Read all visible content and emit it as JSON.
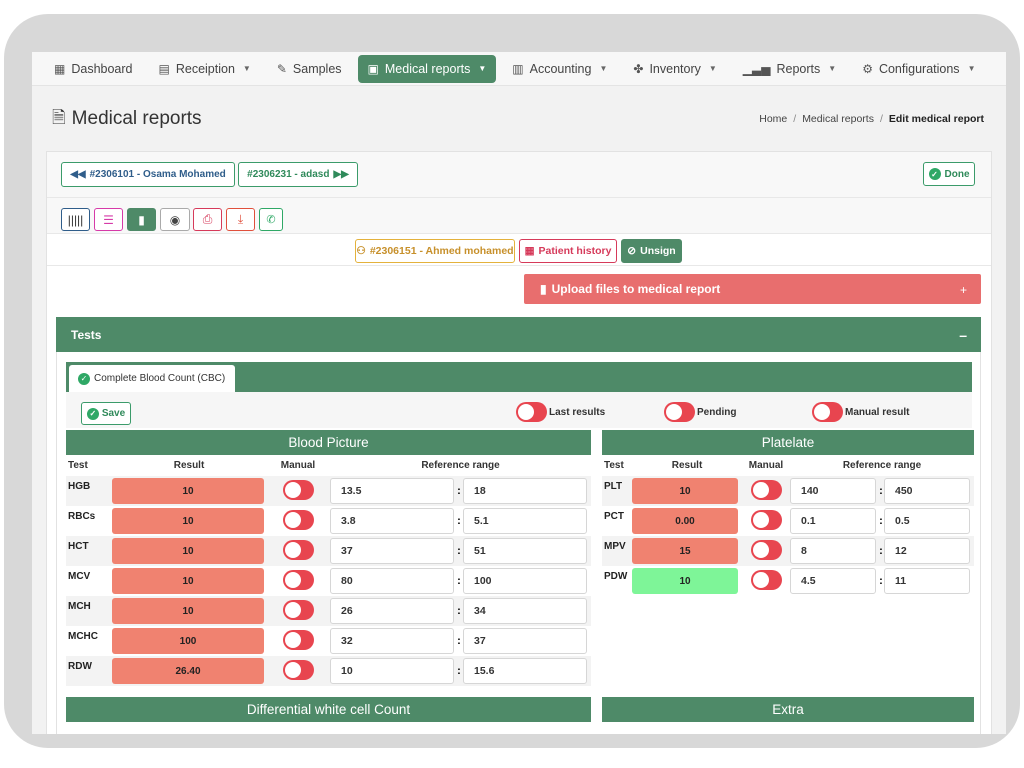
{
  "nav": {
    "items": [
      {
        "label": "Dashboard",
        "icon": "grid-icon",
        "caret": false,
        "active": false
      },
      {
        "label": "Receiption",
        "icon": "file-icon",
        "caret": true,
        "active": false
      },
      {
        "label": "Samples",
        "icon": "syringe-icon",
        "caret": false,
        "active": false
      },
      {
        "label": "Medical reports",
        "icon": "medical-file-icon",
        "caret": true,
        "active": true
      },
      {
        "label": "Accounting",
        "icon": "calculator-icon",
        "caret": true,
        "active": false
      },
      {
        "label": "Inventory",
        "icon": "boxes-icon",
        "caret": true,
        "active": false
      },
      {
        "label": "Reports",
        "icon": "chart-icon",
        "caret": true,
        "active": false
      },
      {
        "label": "Configurations",
        "icon": "gears-icon",
        "caret": true,
        "active": false
      }
    ]
  },
  "header": {
    "title": "Medical reports",
    "breadcrumb": {
      "home": "Home",
      "section": "Medical reports",
      "current": "Edit medical report"
    }
  },
  "toolbar": {
    "prev_patient": "#2306101 - Osama Mohamed",
    "next_patient": "#2306231 - adasd",
    "done": "Done",
    "patient": "#2306151 - Ahmed mohamed",
    "history": "Patient history",
    "unsign": "Unsign",
    "upload": "Upload files to medical report",
    "upload_plus": "+"
  },
  "tests": {
    "title": "Tests",
    "collapse": "–",
    "tab": "Complete Blood Count (CBC)",
    "save": "Save",
    "toggles": {
      "last_results": "Last results",
      "pending": "Pending",
      "manual_result": "Manual result"
    }
  },
  "columns": {
    "test": "Test",
    "result": "Result",
    "manual": "Manual",
    "range": "Reference range",
    "sep": ":"
  },
  "blood_picture": {
    "title": "Blood Picture",
    "rows": [
      {
        "test": "HGB",
        "result": "10",
        "low": "13.5",
        "high": "18",
        "status": "abnormal"
      },
      {
        "test": "RBCs",
        "result": "10",
        "low": "3.8",
        "high": "5.1",
        "status": "abnormal"
      },
      {
        "test": "HCT",
        "result": "10",
        "low": "37",
        "high": "51",
        "status": "abnormal"
      },
      {
        "test": "MCV",
        "result": "10",
        "low": "80",
        "high": "100",
        "status": "abnormal"
      },
      {
        "test": "MCH",
        "result": "10",
        "low": "26",
        "high": "34",
        "status": "abnormal"
      },
      {
        "test": "MCHC",
        "result": "100",
        "low": "32",
        "high": "37",
        "status": "abnormal"
      },
      {
        "test": "RDW",
        "result": "26.40",
        "low": "10",
        "high": "15.6",
        "status": "abnormal"
      }
    ]
  },
  "platelate": {
    "title": "Platelate",
    "rows": [
      {
        "test": "PLT",
        "result": "10",
        "low": "140",
        "high": "450",
        "status": "abnormal"
      },
      {
        "test": "PCT",
        "result": "0.00",
        "low": "0.1",
        "high": "0.5",
        "status": "abnormal"
      },
      {
        "test": "MPV",
        "result": "15",
        "low": "8",
        "high": "12",
        "status": "abnormal"
      },
      {
        "test": "PDW",
        "result": "10",
        "low": "4.5",
        "high": "11",
        "status": "normal"
      }
    ]
  },
  "more_sections": {
    "differential": "Differential white cell Count",
    "extra": "Extra"
  },
  "colors": {
    "primary": "#4e8a68",
    "abnormal": "#f08270",
    "normal": "#7ef598",
    "toggle": "#e8454f",
    "upload": "#e86e6e"
  }
}
